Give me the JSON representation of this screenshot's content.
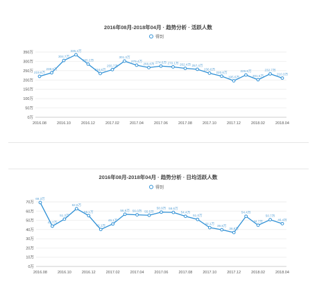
{
  "colors": {
    "line": "#2d8fd5",
    "label": "#5aa2d6",
    "axis": "#555555",
    "grid": "#e9e9e9",
    "title": "#444444"
  },
  "chart_data": [
    {
      "type": "line",
      "title": "2016年08月-2018年04月 · 趋势分析 · 活跃人数",
      "legend": "得到",
      "legend_position": "top-center",
      "grid": true,
      "ylim": [
        0,
        350
      ],
      "y_ticks": [
        "0万",
        "50万",
        "100万",
        "150万",
        "200万",
        "250万",
        "300万",
        "350万"
      ],
      "categories": [
        "2016.08",
        "2016.09",
        "2016.10",
        "2016.11",
        "2016.12",
        "2017.01",
        "2017.02",
        "2017.03",
        "2017.04",
        "2017.05",
        "2017.06",
        "2017.07",
        "2017.08",
        "2017.09",
        "2017.10",
        "2017.11",
        "2017.12",
        "2018.01",
        "2018.02",
        "2018.03",
        "2018.04"
      ],
      "x_tick_labels": [
        "2016.08",
        "2016.10",
        "2016.12",
        "2017.02",
        "2017.04",
        "2017.06",
        "2017.08",
        "2017.10",
        "2017.12",
        "2018.02",
        "2018.04"
      ],
      "series": [
        {
          "name": "得到",
          "values": [
            219.6,
            238.6,
            304.7,
            335.3,
            285.2,
            234.8,
            255.7,
            301.3,
            279.4,
            266.8,
            274.6,
            270.1,
            262.4,
            257.4,
            236.6,
            220.6,
            195.6,
            226.8,
            201.5,
            232.7,
            210.3
          ],
          "labels": [
            "219.6万",
            "238.6万",
            "304.7万",
            "335.3万",
            "285.2万",
            "234.8万",
            "255.7万",
            "301.3万",
            "279.4万",
            "266.8万",
            "274.6万",
            "270.1万",
            "262.4万",
            "257.4万",
            "236.6万",
            "220.6万",
            "195.6万",
            "226.8万",
            "201.5万",
            "232.7万",
            "210.3万"
          ]
        }
      ]
    },
    {
      "type": "line",
      "title": "2016年08月-2018年04月 · 趋势分析 · 日均活跃人数",
      "legend": "得到",
      "legend_position": "top-center",
      "grid": true,
      "ylim": [
        0,
        70
      ],
      "y_ticks": [
        "0万",
        "10万",
        "20万",
        "30万",
        "40万",
        "50万",
        "60万",
        "70万"
      ],
      "categories": [
        "2016.08",
        "2016.09",
        "2016.10",
        "2016.11",
        "2016.12",
        "2017.01",
        "2017.02",
        "2017.03",
        "2017.04",
        "2017.05",
        "2017.06",
        "2017.07",
        "2017.08",
        "2017.09",
        "2017.10",
        "2017.11",
        "2017.12",
        "2018.01",
        "2018.02",
        "2018.03",
        "2018.04"
      ],
      "x_tick_labels": [
        "2016.08",
        "2016.10",
        "2016.12",
        "2017.02",
        "2017.04",
        "2017.06",
        "2017.08",
        "2017.10",
        "2017.12",
        "2018.02",
        "2018.04"
      ],
      "series": [
        {
          "name": "得到",
          "values": [
            69.3,
            43.7,
            51.3,
            62.6,
            55.1,
            40.1,
            46.1,
            56.6,
            56.0,
            55.5,
            58.9,
            58.6,
            54.4,
            51.0,
            42.1,
            39.8,
            36.8,
            54.4,
            44.7,
            50.7,
            46.4
          ],
          "labels": [
            "69.3万",
            "43.7万",
            "51.3万",
            "62.6万",
            "55.1万",
            "40.1万",
            "46.1万",
            "56.6万",
            "56.0万",
            "55.5万",
            "58.9万",
            "58.6万",
            "54.4万",
            "51.0万",
            "42.1万",
            "39.8万",
            "36.8万",
            "54.4万",
            "44.7万",
            "50.7万",
            "46.4万"
          ]
        }
      ]
    }
  ]
}
